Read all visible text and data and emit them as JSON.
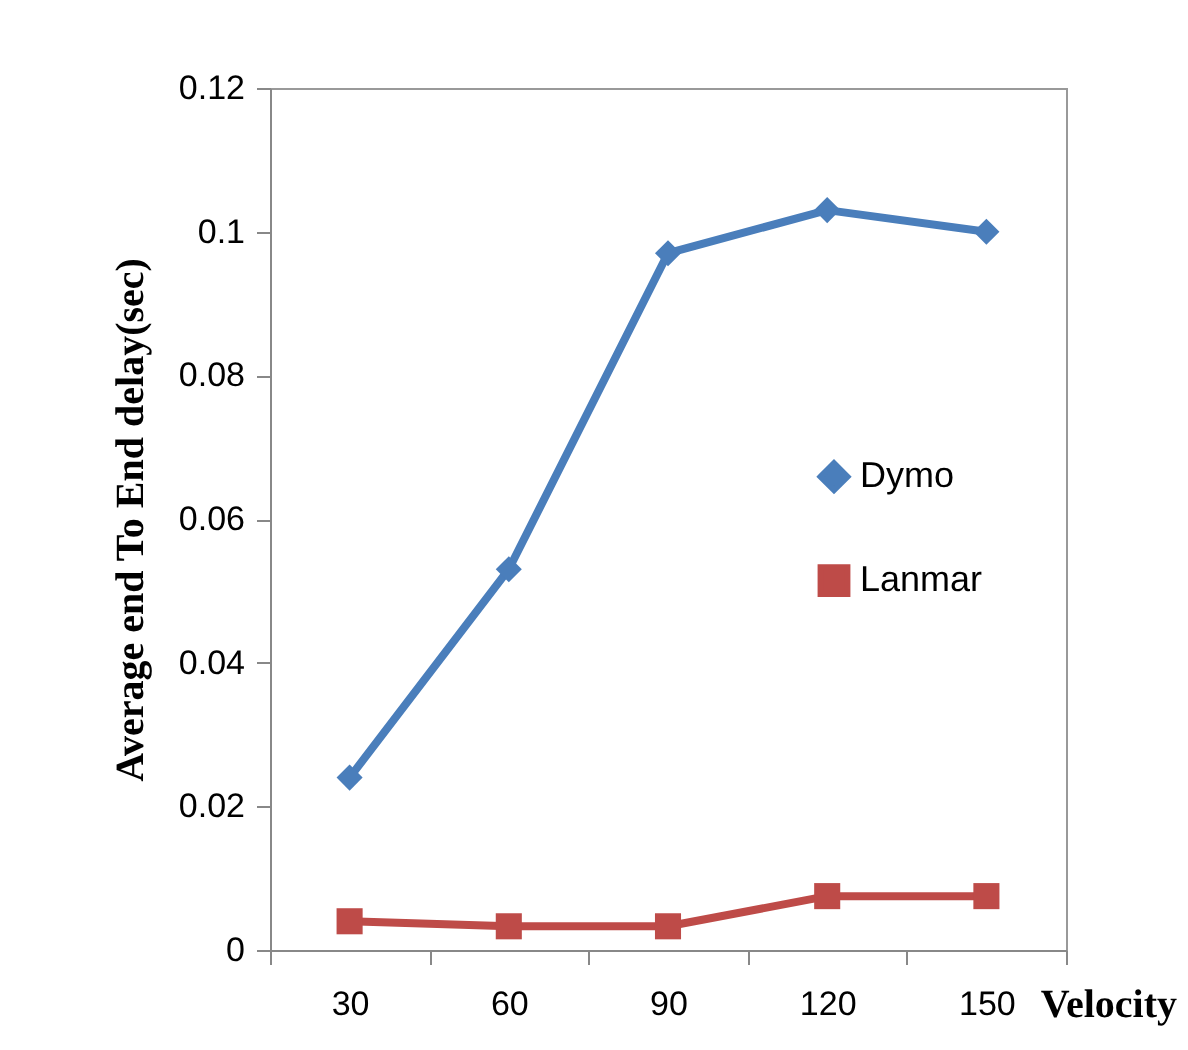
{
  "chart_data": {
    "type": "line",
    "xlabel": "Velocity",
    "ylabel": "Average end To End delay(sec)",
    "categories": [
      "30",
      "60",
      "90",
      "120",
      "150"
    ],
    "series": [
      {
        "name": "Dymo",
        "color": "#4a7ebb",
        "marker": "diamond",
        "values": [
          0.024,
          0.053,
          0.097,
          0.103,
          0.1
        ]
      },
      {
        "name": "Lanmar",
        "color": "#be4b48",
        "marker": "square",
        "values": [
          0.004,
          0.0033,
          0.0033,
          0.0075,
          0.0075
        ]
      }
    ],
    "ylim": [
      0,
      0.12
    ],
    "yticks": [
      0,
      0.02,
      0.04,
      0.06,
      0.08,
      0.1,
      0.12
    ],
    "grid": false,
    "legend": "right"
  }
}
